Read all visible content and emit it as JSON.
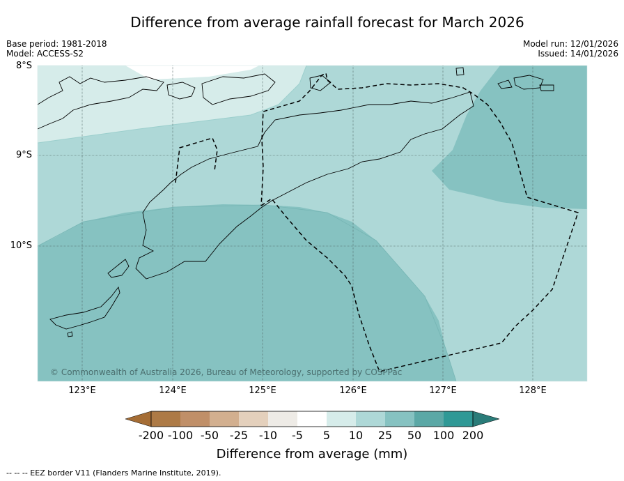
{
  "title": "Difference from average rainfall forecast for March 2026",
  "meta_left": {
    "base_period": "Base period: 1981-2018",
    "model": "Model: ACCESS-S2"
  },
  "meta_right": {
    "model_run": "Model run: 12/01/2026",
    "issued": "Issued: 14/01/2026"
  },
  "lat_labels": [
    "8°S",
    "9°S",
    "10°S"
  ],
  "lon_labels": [
    "123°E",
    "124°E",
    "125°E",
    "126°E",
    "127°E",
    "128°E"
  ],
  "copyright": "© Commonwealth of Australia 2026, Bureau of Meteorology, supported by COSPPac",
  "colorbar": {
    "ticks": [
      "-200",
      "-100",
      "-50",
      "-25",
      "-10",
      "-5",
      "5",
      "10",
      "25",
      "50",
      "100",
      "200"
    ],
    "colors": [
      "#a56d35",
      "#ad7a46",
      "#c08f68",
      "#d2af8f",
      "#e4d0bc",
      "#eeebe6",
      "#ffffff",
      "#d6ecea",
      "#aed8d7",
      "#86c2c1",
      "#5ba8a6",
      "#2f9996",
      "#2a7c79"
    ],
    "label": "Difference from average (mm)"
  },
  "footnote": "--  --  -- EEZ border V11 (Flanders Marine Institute, 2019)."
}
